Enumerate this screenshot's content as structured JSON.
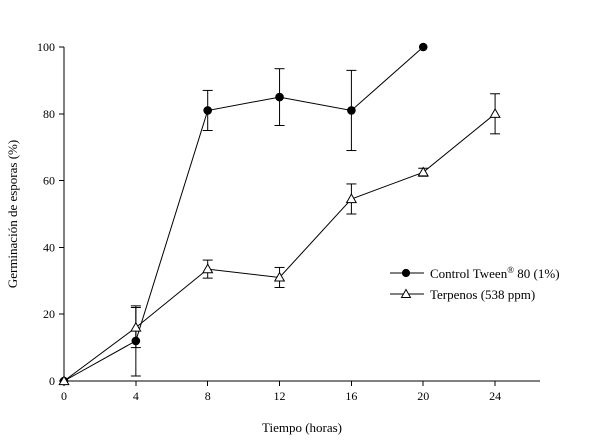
{
  "chart_data": {
    "type": "line",
    "xlabel": "Tiempo (horas)",
    "ylabel": "Germinación de esporas (%)",
    "xlim": [
      0,
      26.5
    ],
    "ylim": [
      0,
      100
    ],
    "x_ticks": [
      0,
      4,
      8,
      12,
      16,
      20,
      24
    ],
    "y_ticks": [
      0,
      20,
      40,
      60,
      80,
      100
    ],
    "legend_position": "right-center",
    "grid": false,
    "series": [
      {
        "name": "Control Tween",
        "name_sup": "®",
        "name_rest": " 80 (1%)",
        "marker": "filled-circle",
        "x": [
          0,
          4,
          8,
          12,
          16,
          20
        ],
        "y": [
          0,
          12,
          81,
          85,
          81,
          100
        ],
        "error": [
          0,
          10.5,
          6,
          8.5,
          12,
          0
        ]
      },
      {
        "name": "Terpenos (538 ppm)",
        "marker": "open-triangle",
        "x": [
          0,
          4,
          8,
          12,
          16,
          20,
          24
        ],
        "y": [
          0,
          16,
          33.5,
          31,
          54.5,
          62.5,
          80
        ],
        "error": [
          0,
          6,
          2.7,
          3,
          4.5,
          1.2,
          6
        ]
      }
    ]
  }
}
